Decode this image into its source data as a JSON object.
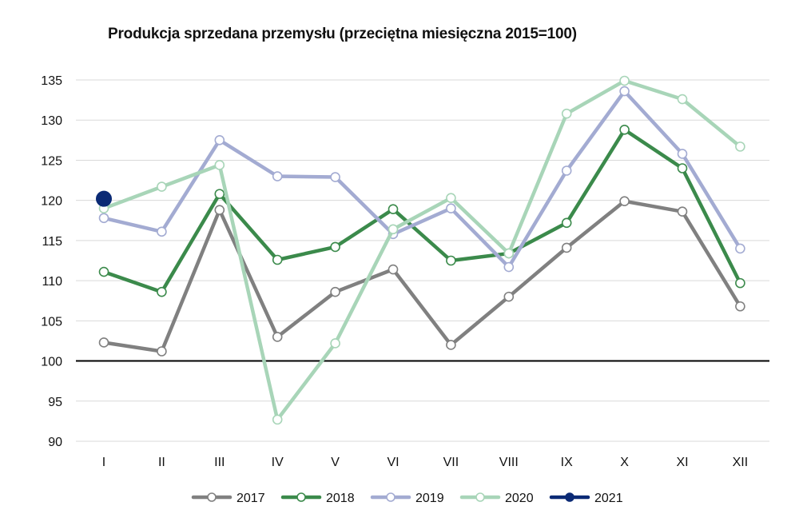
{
  "chart_data": {
    "type": "line",
    "title": "Produkcja sprzedana przemysłu (przeciętna miesięczna 2015=100)",
    "xlabel": "",
    "ylabel": "",
    "categories": [
      "I",
      "II",
      "III",
      "IV",
      "V",
      "VI",
      "VII",
      "VIII",
      "IX",
      "X",
      "XI",
      "XII"
    ],
    "ylim": [
      90,
      135
    ],
    "yticks": [
      "90",
      "95",
      "100",
      "105",
      "110",
      "115",
      "120",
      "125",
      "130",
      "135"
    ],
    "grid": true,
    "reference_line": 100,
    "legend_position": "bottom",
    "series": [
      {
        "name": "2017",
        "color": "#808080",
        "values": [
          102.3,
          101.2,
          118.8,
          103.0,
          108.6,
          111.4,
          102.0,
          108.0,
          114.1,
          119.9,
          118.6,
          106.8
        ]
      },
      {
        "name": "2018",
        "color": "#3b8a4b",
        "values": [
          111.1,
          108.6,
          120.8,
          112.6,
          114.2,
          118.9,
          112.5,
          113.4,
          117.2,
          128.8,
          124.0,
          109.7
        ]
      },
      {
        "name": "2019",
        "color": "#a3abd2",
        "values": [
          117.8,
          116.1,
          127.5,
          123.0,
          122.9,
          115.8,
          119.0,
          111.7,
          123.7,
          133.6,
          125.8,
          114.0
        ]
      },
      {
        "name": "2020",
        "color": "#a8d5b8",
        "values": [
          119.0,
          121.7,
          124.4,
          92.7,
          102.2,
          116.4,
          120.3,
          113.4,
          130.8,
          134.9,
          132.6,
          126.7
        ]
      },
      {
        "name": "2021",
        "color": "#0b2a75",
        "values": [
          120.2,
          null,
          null,
          null,
          null,
          null,
          null,
          null,
          null,
          null,
          null,
          null
        ]
      }
    ]
  }
}
